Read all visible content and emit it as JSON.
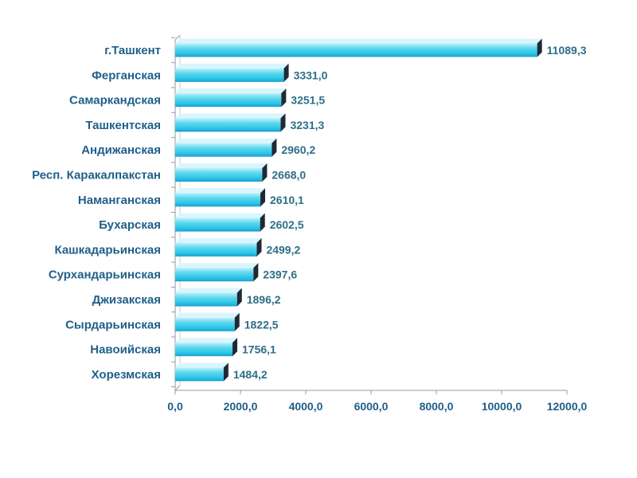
{
  "chart_data": {
    "type": "bar",
    "orientation": "horizontal",
    "categories": [
      "г.Ташкент",
      "Ферганская",
      "Самаркандская",
      "Ташкентская",
      "Андижанская",
      "Респ. Каракалпакстан",
      "Наманганская",
      "Бухарская",
      "Кашкадарьинская",
      "Сурхандарьинская",
      "Джизакская",
      "Сырдарьинская",
      "Навоийская",
      "Хорезмская"
    ],
    "values": [
      11089.3,
      3331.0,
      3251.5,
      3231.3,
      2960.2,
      2668.0,
      2610.1,
      2602.5,
      2499.2,
      2397.6,
      1896.2,
      1822.5,
      1756.1,
      1484.2
    ],
    "value_labels": [
      "11089,3",
      "3331,0",
      "3251,5",
      "3231,3",
      "2960,2",
      "2668,0",
      "2610,1",
      "2602,5",
      "2499,2",
      "2397,6",
      "1896,2",
      "1822,5",
      "1756,1",
      "1484,2"
    ],
    "xticks": [
      0,
      2000,
      4000,
      6000,
      8000,
      10000,
      12000
    ],
    "xtick_labels": [
      "0,0",
      "2000,0",
      "4000,0",
      "6000,0",
      "8000,0",
      "10000,0",
      "12000,0"
    ],
    "xlim": [
      0,
      12000
    ],
    "grid": false,
    "legend": "none",
    "title": "",
    "xlabel": "",
    "ylabel": "",
    "colors": {
      "bar_light": "#bff0fb",
      "bar_mid": "#38cde9",
      "bar_dark": "#1a9fcf",
      "bar_top": "#d9f6fd",
      "bar_end": "#1e2a33",
      "axis": "#9a9a9a",
      "category_text": "#1f5f8a",
      "value_text": "#2e6f87"
    }
  }
}
